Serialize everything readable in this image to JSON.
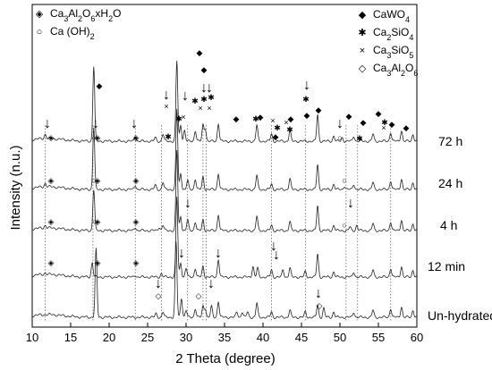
{
  "chart_data": {
    "type": "line",
    "xlabel": "2 Theta (degree)",
    "ylabel": "Intensity (n.u.)",
    "xlim": [
      10,
      60
    ],
    "xticks": [
      10,
      15,
      20,
      25,
      30,
      35,
      40,
      45,
      50,
      55,
      60
    ],
    "yticks_shown": false,
    "series": [
      {
        "name": "72 h",
        "baseline": 5,
        "peaks": [
          [
            11.7,
            0.25
          ],
          [
            18.0,
            4.2
          ],
          [
            23.4,
            0.3
          ],
          [
            26.0,
            0.2
          ],
          [
            27.0,
            0.4
          ],
          [
            28.8,
            4.5
          ],
          [
            29.3,
            0.9
          ],
          [
            29.8,
            0.6
          ],
          [
            31.2,
            0.6
          ],
          [
            32.2,
            0.9
          ],
          [
            32.5,
            0.7
          ],
          [
            34.2,
            1.0
          ],
          [
            39.2,
            0.9
          ],
          [
            41.1,
            0.4
          ],
          [
            43.5,
            0.6
          ],
          [
            47.1,
            1.5
          ],
          [
            49.2,
            0.3
          ],
          [
            50.3,
            0.2
          ],
          [
            51.8,
            0.3
          ],
          [
            54.3,
            0.4
          ],
          [
            56.6,
            0.5
          ],
          [
            58.0,
            0.6
          ],
          [
            59.5,
            0.4
          ]
        ]
      },
      {
        "name": "24 h",
        "baseline": 4,
        "peaks": [
          [
            11.7,
            0.2
          ],
          [
            18.0,
            3.5
          ],
          [
            23.4,
            0.25
          ],
          [
            26.0,
            0.25
          ],
          [
            27.0,
            0.4
          ],
          [
            28.8,
            4.5
          ],
          [
            29.3,
            0.9
          ],
          [
            30.2,
            0.5
          ],
          [
            31.2,
            0.6
          ],
          [
            32.2,
            0.7
          ],
          [
            34.2,
            0.9
          ],
          [
            39.2,
            0.8
          ],
          [
            41.1,
            0.3
          ],
          [
            43.5,
            0.6
          ],
          [
            47.1,
            1.4
          ],
          [
            49.2,
            0.3
          ],
          [
            50.6,
            0.2
          ],
          [
            51.8,
            0.3
          ],
          [
            54.3,
            0.4
          ],
          [
            56.6,
            0.5
          ],
          [
            58.0,
            0.6
          ],
          [
            59.5,
            0.4
          ]
        ]
      },
      {
        "name": "4 h",
        "baseline": 3,
        "peaks": [
          [
            11.7,
            0.15
          ],
          [
            18.0,
            2.3
          ],
          [
            23.4,
            0.2
          ],
          [
            26.5,
            0.2
          ],
          [
            27.0,
            0.3
          ],
          [
            28.8,
            4.5
          ],
          [
            29.3,
            0.8
          ],
          [
            30.2,
            0.6
          ],
          [
            31.2,
            0.5
          ],
          [
            32.2,
            0.6
          ],
          [
            34.2,
            0.9
          ],
          [
            39.2,
            0.8
          ],
          [
            41.1,
            0.3
          ],
          [
            43.5,
            0.5
          ],
          [
            47.1,
            1.4
          ],
          [
            49.2,
            0.3
          ],
          [
            51.3,
            0.2
          ],
          [
            52.2,
            0.3
          ],
          [
            54.3,
            0.4
          ],
          [
            56.6,
            0.5
          ],
          [
            58.0,
            0.6
          ],
          [
            59.5,
            0.4
          ]
        ]
      },
      {
        "name": "12 min",
        "baseline": 2,
        "peaks": [
          [
            11.7,
            0.1
          ],
          [
            17.8,
            0.8
          ],
          [
            23.4,
            0.1
          ],
          [
            26.8,
            0.2
          ],
          [
            28.8,
            4.5
          ],
          [
            29.3,
            0.8
          ],
          [
            30.0,
            0.5
          ],
          [
            31.2,
            0.5
          ],
          [
            32.2,
            0.6
          ],
          [
            34.2,
            1.0
          ],
          [
            38.7,
            0.6
          ],
          [
            39.3,
            0.5
          ],
          [
            41.1,
            0.4
          ],
          [
            42.6,
            0.4
          ],
          [
            43.5,
            0.5
          ],
          [
            45.5,
            0.3
          ],
          [
            47.1,
            1.3
          ],
          [
            49.2,
            0.3
          ],
          [
            51.8,
            0.3
          ],
          [
            54.3,
            0.4
          ],
          [
            56.6,
            0.5
          ],
          [
            58.0,
            0.6
          ],
          [
            59.5,
            0.4
          ]
        ]
      },
      {
        "name": "Un-hydrated",
        "baseline": 1,
        "peaks": [
          [
            18.3,
            3.8
          ],
          [
            26.1,
            0.2
          ],
          [
            27.0,
            0.3
          ],
          [
            28.7,
            4.2
          ],
          [
            29.4,
            1.1
          ],
          [
            30.0,
            0.4
          ],
          [
            31.2,
            0.5
          ],
          [
            32.2,
            0.6
          ],
          [
            32.5,
            0.5
          ],
          [
            33.3,
            0.6
          ],
          [
            34.2,
            0.9
          ],
          [
            36.6,
            0.3
          ],
          [
            37.3,
            0.3
          ],
          [
            38.0,
            0.3
          ],
          [
            39.2,
            0.8
          ],
          [
            41.1,
            0.3
          ],
          [
            43.5,
            0.4
          ],
          [
            45.5,
            0.3
          ],
          [
            47.1,
            0.7
          ],
          [
            47.9,
            0.5
          ],
          [
            49.2,
            0.3
          ],
          [
            51.8,
            0.3
          ],
          [
            54.3,
            0.4
          ],
          [
            56.6,
            0.5
          ],
          [
            58.0,
            0.6
          ],
          [
            59.5,
            0.4
          ]
        ]
      }
    ],
    "legend_left": [
      {
        "marker": "◈",
        "label_parts": [
          [
            "Ca",
            ""
          ],
          [
            "3",
            "sub"
          ],
          [
            "Al",
            ""
          ],
          [
            "2",
            "sub"
          ],
          [
            "O",
            ""
          ],
          [
            "6",
            "sub"
          ],
          [
            "xH",
            ""
          ],
          [
            "2",
            "sub"
          ],
          [
            "O",
            ""
          ]
        ]
      },
      {
        "marker": "○",
        "label_parts": [
          [
            "Ca (OH)",
            ""
          ],
          [
            "2",
            "sub"
          ]
        ]
      }
    ],
    "legend_right": [
      {
        "marker": "◆",
        "label_parts": [
          [
            "CaWO",
            ""
          ],
          [
            "4",
            "sub"
          ]
        ]
      },
      {
        "marker": "✱",
        "label_parts": [
          [
            "Ca",
            ""
          ],
          [
            "2",
            "sub"
          ],
          [
            "SiO",
            ""
          ],
          [
            "4",
            "sub"
          ]
        ]
      },
      {
        "marker": "×",
        "label_parts": [
          [
            "Ca",
            ""
          ],
          [
            "3",
            "sub"
          ],
          [
            "SiO",
            ""
          ],
          [
            "5",
            "sub"
          ]
        ]
      },
      {
        "marker": "◇",
        "label_parts": [
          [
            "Ca",
            ""
          ],
          [
            "3",
            "sub"
          ],
          [
            "Al",
            ""
          ],
          [
            "2",
            "sub"
          ],
          [
            "O",
            ""
          ],
          [
            "6",
            "sub"
          ]
        ]
      }
    ],
    "dotted_lines_x": [
      11.7,
      17.9,
      23.4,
      26.8,
      30.2,
      32.2,
      32.6,
      41.1,
      45.5,
      50.8,
      52.3,
      56.6
    ]
  }
}
